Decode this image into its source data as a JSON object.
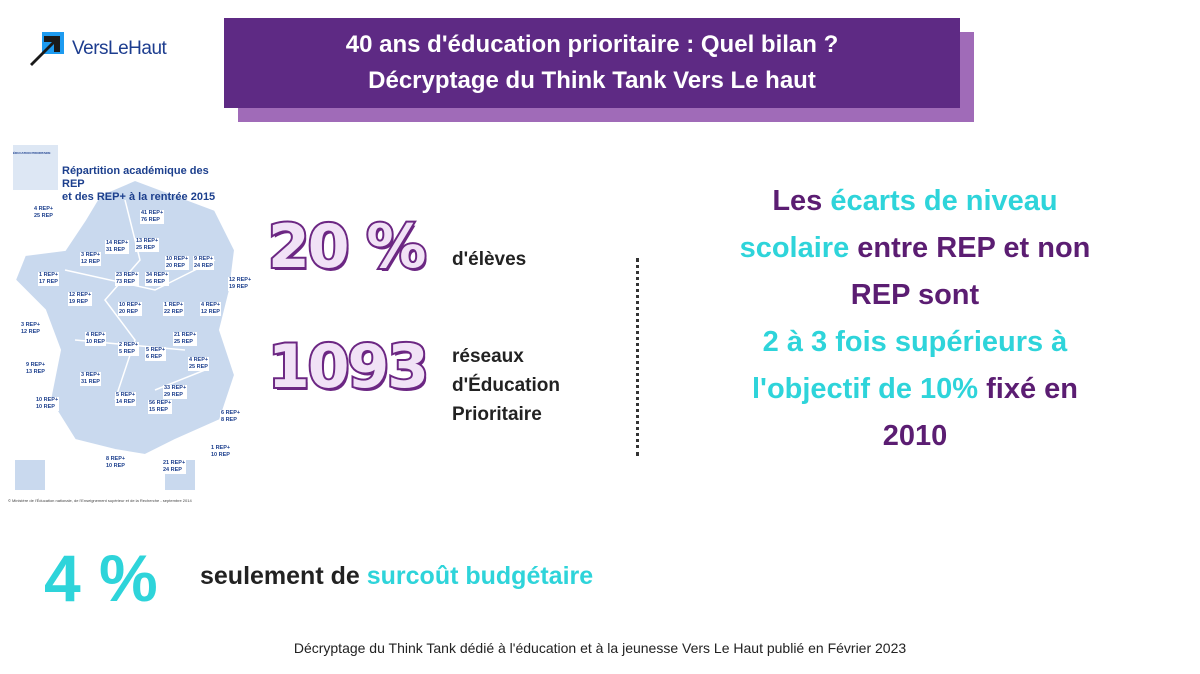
{
  "logo": {
    "text": "VersLeHaut",
    "arrow_color": "#1a1a1a",
    "accent_color": "#1d9bf0"
  },
  "title": {
    "line1": "40 ans d'éducation prioritaire : Quel bilan ?",
    "line2": "Décryptage du Think Tank Vers Le haut",
    "box_color": "#5e2a84",
    "shadow_color": "#a06bb8"
  },
  "map": {
    "heading_line1": "Répartition académique des REP",
    "heading_line2": "et des REP+ à la rentrée 2015",
    "badge": "ÉDUCATION PRIORITAIRE",
    "credit": "© Ministère de l'Éducation nationale, de l'Enseignement supérieur et de la Recherche - septembre 2014",
    "labels": [
      "4 REP+\n25 REP",
      "41 REP+\n76 REP",
      "14 REP+\n31 REP",
      "13 REP+\n25 REP",
      "3 REP+\n12 REP",
      "23 REP+\n73 REP",
      "10 REP+\n20 REP",
      "9 REP+\n24 REP",
      "1 REP+\n17 REP",
      "34 REP+\n56 REP",
      "12 REP+\n19 REP",
      "12 REP+\n19 REP",
      "1 REP+\n22 REP",
      "10 REP+\n20 REP",
      "4 REP+\n12 REP",
      "3 REP+\n12 REP",
      "4 REP+\n10 REP",
      "2 REP+\n5 REP",
      "5 REP+\n6 REP",
      "21 REP+\n25 REP",
      "9 REP+\n13 REP",
      "3 REP+\n31 REP",
      "4 REP+\n25 REP",
      "33 REP+\n29 REP",
      "5 REP+\n14 REP",
      "56 REP+\n15 REP",
      "6 REP+\n8 REP",
      "10 REP+\n10 REP",
      "1 REP+\n10 REP",
      "8 REP+\n10 REP",
      "21 REP+\n24 REP"
    ]
  },
  "stats": [
    {
      "value": "20 %",
      "label_lines": [
        "d'élèves"
      ]
    },
    {
      "value": "1093",
      "label_lines": [
        "réseaux",
        "d'Éducation",
        "Prioritaire"
      ]
    }
  ],
  "right": {
    "line1_a": "Les ",
    "line1_b": "écarts de niveau",
    "line2_a": "scolaire",
    "line2_b": " entre REP et non",
    "line3": "REP sont",
    "line4": "2 à 3 fois supérieurs à",
    "line5_a": "l'objectif de 10%",
    "line5_b": " fixé en",
    "line6": "2010",
    "dark_color": "#5b1d72",
    "cyan_color": "#2ed4da"
  },
  "budget": {
    "value": "4 %",
    "text_a": "seulement de ",
    "text_b": "surcoût budgétaire"
  },
  "footer": "Décryptage du Think Tank dédié à l'éducation et à la jeunesse Vers Le Haut publié  en Février 2023"
}
